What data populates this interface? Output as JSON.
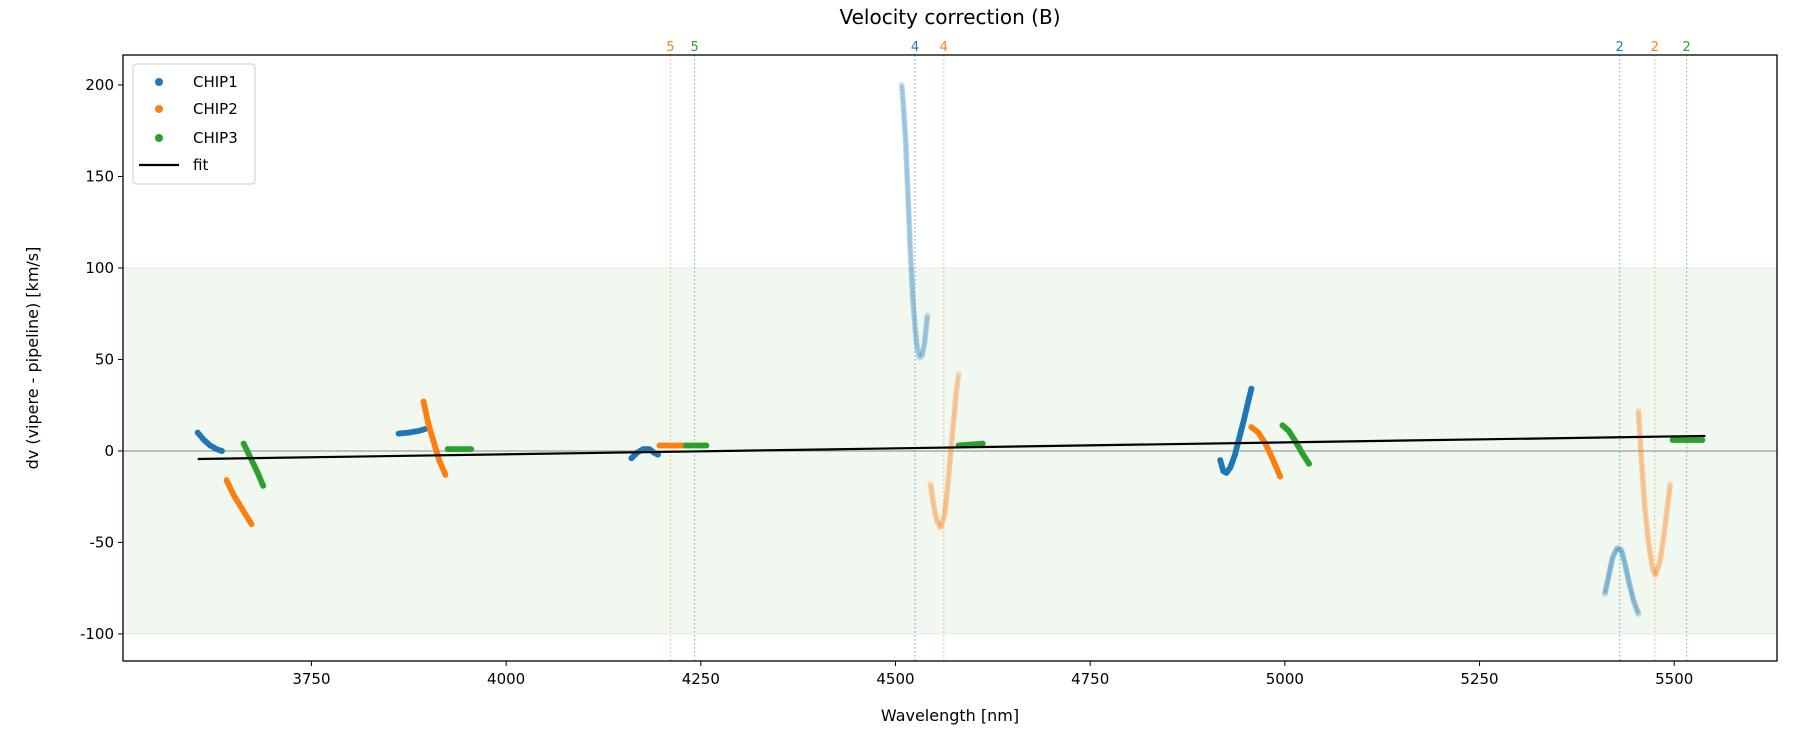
{
  "chart_data": {
    "type": "scatter",
    "title": "Velocity correction (B)",
    "xlabel": "Wavelength [nm]",
    "ylabel": "dv (vipere - pipeline) [km/s]",
    "xlim": [
      3508,
      5632
    ],
    "ylim": [
      -114.8,
      216.4
    ],
    "xticks": [
      3750,
      4000,
      4250,
      4500,
      4750,
      5000,
      5250,
      5500
    ],
    "yticks": [
      -100,
      -50,
      0,
      50,
      100,
      150,
      200
    ],
    "shaded_band": {
      "y": [
        -100,
        100
      ],
      "color": "#2ca02c"
    },
    "zero_line": 0,
    "legend": {
      "placement": "top-left",
      "entries": [
        {
          "label": "CHIP1",
          "color": "#1f77b4",
          "kind": "marker"
        },
        {
          "label": "CHIP2",
          "color": "#ff7f0e",
          "kind": "marker"
        },
        {
          "label": "CHIP3",
          "color": "#2ca02c",
          "kind": "marker"
        },
        {
          "label": "fit",
          "color": "#000000",
          "kind": "line"
        }
      ]
    },
    "fit": {
      "x": [
        3604,
        5540
      ],
      "y": [
        -4.4,
        8.2
      ],
      "color": "#000000"
    },
    "order_markers": [
      {
        "label": "5",
        "x": 4211,
        "color": "#ff7f0e"
      },
      {
        "label": "5",
        "x": 4242,
        "color": "#2ca02c"
      },
      {
        "label": "4",
        "x": 4525,
        "color": "#1f77b4"
      },
      {
        "label": "4",
        "x": 4562,
        "color": "#ff7f0e"
      },
      {
        "label": "2",
        "x": 5430,
        "color": "#1f77b4"
      },
      {
        "label": "2",
        "x": 5475,
        "color": "#ff7f0e"
      },
      {
        "label": "2",
        "x": 5516,
        "color": "#2ca02c"
      }
    ],
    "series": [
      {
        "name": "CHIP1",
        "color": "#1f77b4",
        "segments": [
          {
            "alpha": 1,
            "points": [
              [
                3604,
                10
              ],
              [
                3612,
                6
              ],
              [
                3620,
                3
              ],
              [
                3628,
                1
              ],
              [
                3635,
                0
              ]
            ]
          },
          {
            "alpha": 1,
            "points": [
              [
                3862,
                9.5
              ],
              [
                3875,
                10
              ],
              [
                3888,
                11
              ],
              [
                3896,
                12
              ]
            ]
          },
          {
            "alpha": 1,
            "points": [
              [
                4161,
                -4
              ],
              [
                4168,
                -1
              ],
              [
                4176,
                1
              ],
              [
                4184,
                1
              ],
              [
                4190,
                -1
              ],
              [
                4195,
                -2
              ]
            ]
          },
          {
            "alpha": 0.2,
            "points": [
              [
                4508,
                200
              ],
              [
                4510,
                190
              ],
              [
                4513,
                170
              ],
              [
                4516,
                140
              ],
              [
                4519,
                110
              ],
              [
                4522,
                85
              ],
              [
                4525,
                68
              ],
              [
                4528,
                56
              ],
              [
                4531,
                51
              ],
              [
                4534,
                52
              ],
              [
                4537,
                58
              ],
              [
                4541,
                74
              ]
            ]
          },
          {
            "alpha": 1,
            "points": [
              [
                4917,
                -5
              ],
              [
                4921,
                -11
              ],
              [
                4925,
                -12
              ],
              [
                4930,
                -9
              ],
              [
                4936,
                -2
              ],
              [
                4942,
                8
              ],
              [
                4948,
                18
              ],
              [
                4953,
                27
              ],
              [
                4957,
                34
              ]
            ]
          },
          {
            "alpha": 0.25,
            "points": [
              [
                5411,
                -78
              ],
              [
                5416,
                -68
              ],
              [
                5421,
                -58
              ],
              [
                5427,
                -53
              ],
              [
                5432,
                -54
              ],
              [
                5437,
                -62
              ],
              [
                5442,
                -72
              ],
              [
                5448,
                -82
              ],
              [
                5454,
                -89
              ]
            ]
          }
        ]
      },
      {
        "name": "CHIP2",
        "color": "#ff7f0e",
        "segments": [
          {
            "alpha": 1,
            "points": [
              [
                3641,
                -16
              ],
              [
                3650,
                -24
              ],
              [
                3660,
                -31
              ],
              [
                3673,
                -40
              ]
            ]
          },
          {
            "alpha": 1,
            "points": [
              [
                3894,
                27
              ],
              [
                3900,
                15
              ],
              [
                3907,
                5
              ],
              [
                3914,
                -5
              ],
              [
                3922,
                -13
              ]
            ]
          },
          {
            "alpha": 1,
            "points": [
              [
                4197,
                3
              ],
              [
                4228,
                3
              ]
            ]
          },
          {
            "alpha": 0.2,
            "points": [
              [
                4545,
                -18
              ],
              [
                4549,
                -30
              ],
              [
                4553,
                -38
              ],
              [
                4558,
                -42
              ],
              [
                4563,
                -35
              ],
              [
                4567,
                -20
              ],
              [
                4571,
                0
              ],
              [
                4575,
                18
              ],
              [
                4578,
                32
              ],
              [
                4581,
                42
              ]
            ]
          },
          {
            "alpha": 1,
            "points": [
              [
                4957,
                13
              ],
              [
                4966,
                10
              ],
              [
                4975,
                4
              ],
              [
                4985,
                -5
              ],
              [
                4994,
                -14
              ]
            ]
          },
          {
            "alpha": 0.2,
            "points": [
              [
                5454,
                22
              ],
              [
                5458,
                -5
              ],
              [
                5462,
                -30
              ],
              [
                5467,
                -50
              ],
              [
                5472,
                -64
              ],
              [
                5476,
                -68
              ],
              [
                5482,
                -60
              ],
              [
                5488,
                -42
              ],
              [
                5495,
                -18
              ]
            ]
          }
        ]
      },
      {
        "name": "CHIP3",
        "color": "#2ca02c",
        "segments": [
          {
            "alpha": 1,
            "points": [
              [
                3663,
                4
              ],
              [
                3672,
                -4
              ],
              [
                3680,
                -11
              ],
              [
                3688,
                -19
              ]
            ]
          },
          {
            "alpha": 1,
            "points": [
              [
                3925,
                1
              ],
              [
                3955,
                1
              ]
            ]
          },
          {
            "alpha": 1,
            "points": [
              [
                4231,
                3
              ],
              [
                4257,
                3
              ]
            ]
          },
          {
            "alpha": 1,
            "points": [
              [
                4581,
                3
              ],
              [
                4596,
                3.5
              ],
              [
                4612,
                4
              ]
            ]
          },
          {
            "alpha": 1,
            "points": [
              [
                4997,
                14
              ],
              [
                5005,
                11
              ],
              [
                5014,
                5
              ],
              [
                5022,
                -1
              ],
              [
                5031,
                -7
              ]
            ]
          },
          {
            "alpha": 1,
            "points": [
              [
                5498,
                6
              ],
              [
                5536,
                6
              ]
            ]
          }
        ]
      }
    ]
  }
}
